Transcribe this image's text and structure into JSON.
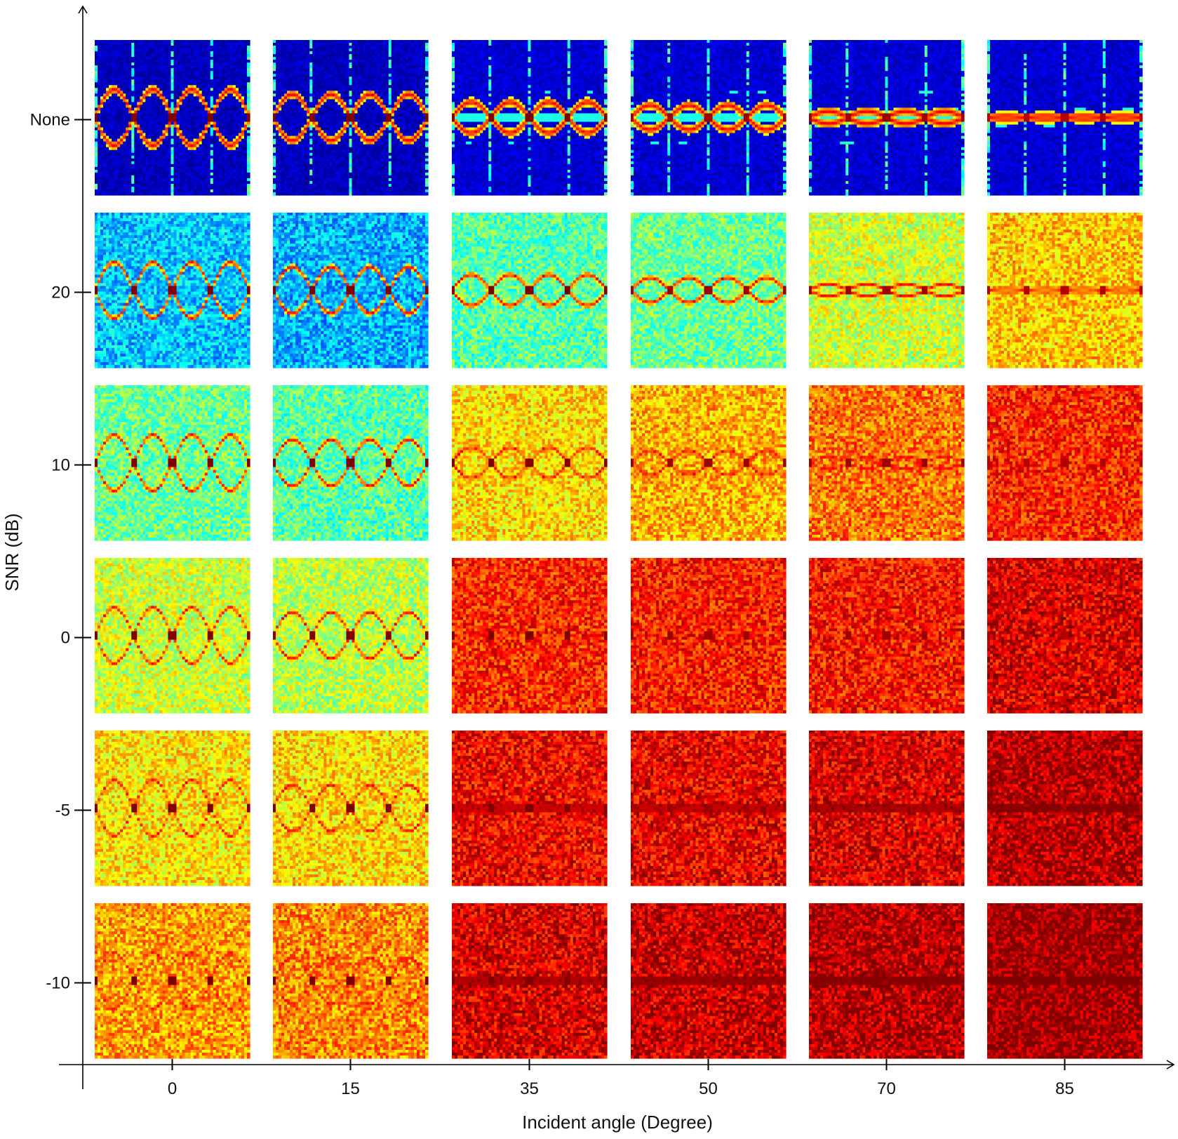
{
  "chart_data": {
    "type": "heatmap",
    "title": "",
    "xlabel": "Incident angle (Degree)",
    "ylabel": "SNR (dB)",
    "x_tick_labels": [
      "0",
      "15",
      "35",
      "50",
      "70",
      "85"
    ],
    "y_tick_labels": [
      "None",
      "20",
      "10",
      "0",
      "-5",
      "-10"
    ],
    "colormap": "jet",
    "grid": false,
    "legend": "none",
    "noise_level": [
      [
        0.06,
        0.06,
        0.08,
        0.08,
        0.08,
        0.08
      ],
      [
        0.32,
        0.3,
        0.46,
        0.48,
        0.58,
        0.68
      ],
      [
        0.48,
        0.46,
        0.66,
        0.7,
        0.76,
        0.84
      ],
      [
        0.58,
        0.56,
        0.84,
        0.85,
        0.86,
        0.91
      ],
      [
        0.65,
        0.66,
        0.88,
        0.89,
        0.91,
        0.95
      ],
      [
        0.72,
        0.74,
        0.91,
        0.93,
        0.95,
        0.98
      ]
    ],
    "signal_level": [
      1.0,
      1.0,
      1.0,
      0.97,
      0.97,
      0.95
    ]
  }
}
